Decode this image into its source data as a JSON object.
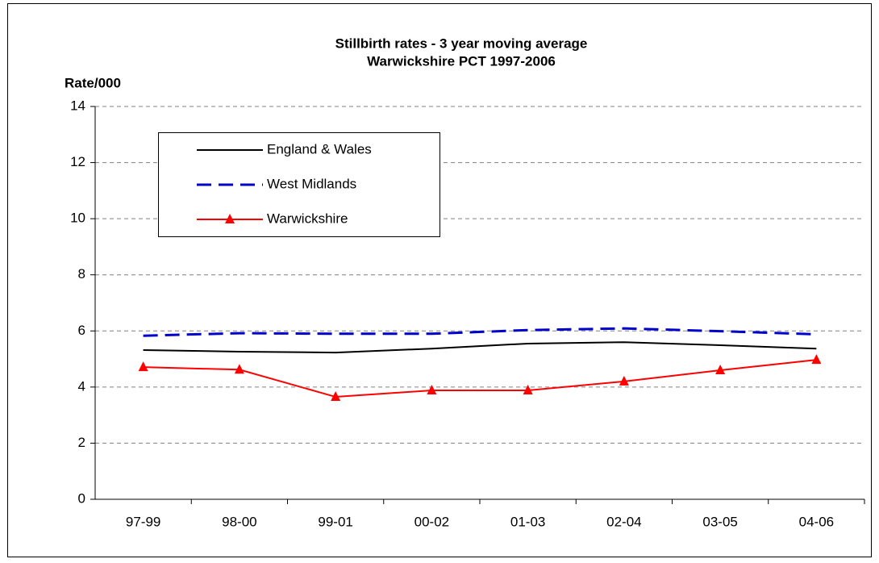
{
  "chart_data": {
    "type": "line",
    "title": "Stillbirth rates - 3 year moving average",
    "subtitle": "Warwickshire PCT 1997-2006",
    "y_label": "Rate/000",
    "categories": [
      "97-99",
      "98-00",
      "99-01",
      "00-02",
      "01-03",
      "02-04",
      "03-05",
      "04-06"
    ],
    "series": [
      {
        "name": "England & Wales",
        "color": "#000000",
        "values": [
          5.32,
          5.26,
          5.23,
          5.37,
          5.55,
          5.6,
          5.49,
          5.37
        ]
      },
      {
        "name": "West Midlands",
        "color": "#0000cc",
        "dashed": true,
        "values": [
          5.83,
          5.92,
          5.9,
          5.9,
          6.03,
          6.09,
          5.99,
          5.88
        ]
      },
      {
        "name": "Warwickshire",
        "color": "#ff0000",
        "marker": "triangle",
        "values": [
          4.71,
          4.62,
          3.65,
          3.88,
          3.88,
          4.2,
          4.6,
          4.97
        ]
      }
    ],
    "ylim": [
      0,
      14
    ],
    "yticks": [
      0,
      2,
      4,
      6,
      8,
      10,
      12,
      14
    ],
    "grid": true
  }
}
